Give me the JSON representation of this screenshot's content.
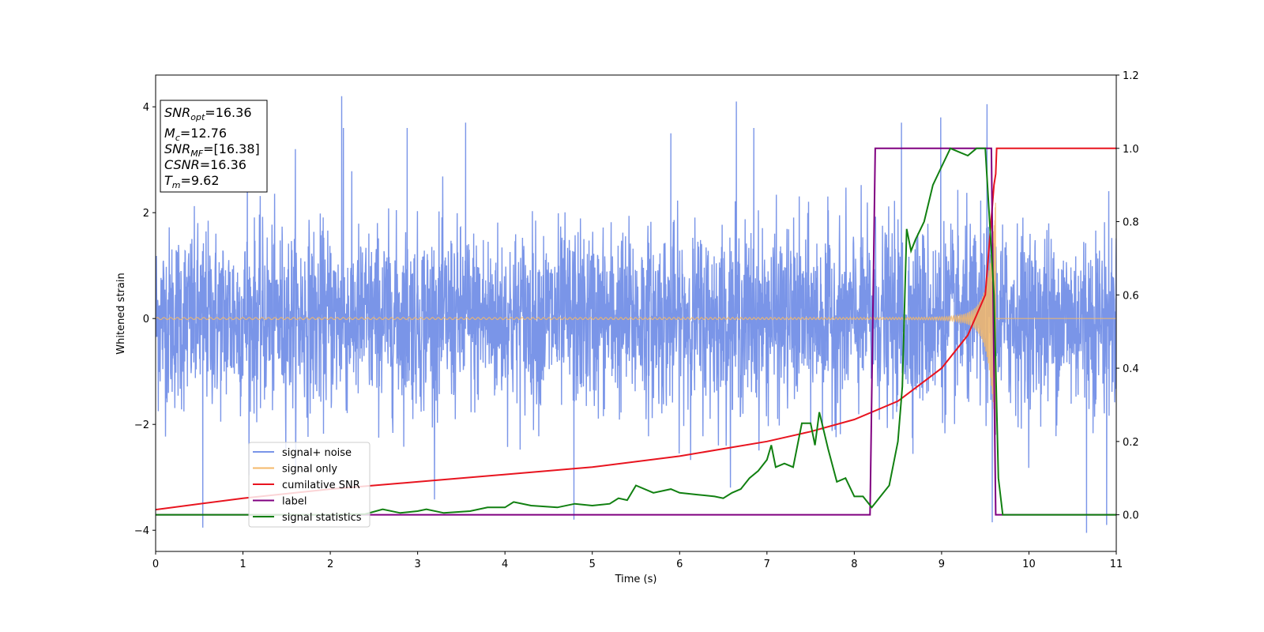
{
  "chart_data": {
    "type": "line",
    "xlabel": "Time (s)",
    "ylabel": "Whitened strain",
    "xlim": [
      0,
      11
    ],
    "ylim_left": [
      -4.4,
      4.6
    ],
    "ylim_right": [
      -0.1,
      1.2
    ],
    "x_ticks": [
      "0",
      "1",
      "2",
      "3",
      "4",
      "5",
      "6",
      "7",
      "8",
      "9",
      "10",
      "11"
    ],
    "y_ticks_left": [
      "−4",
      "−2",
      "0",
      "2",
      "4"
    ],
    "y_ticks_right": [
      "0.0",
      "0.2",
      "0.4",
      "0.6",
      "0.8",
      "1.0",
      "1.2"
    ],
    "grid": false,
    "legend_position": "lower-left",
    "annotation": {
      "snr_opt": {
        "sym": "SNR",
        "sub": "opt",
        "value": "=16.36"
      },
      "mc": {
        "sym": "M",
        "sub": "c",
        "value": "=12.76"
      },
      "snr_mf": {
        "sym": "SNR",
        "sub": "MF",
        "value": "=[16.38]"
      },
      "csnr": {
        "sym": "CSNR",
        "value": "=16.36"
      },
      "tm": {
        "sym": "T",
        "sub": "m",
        "value": "=9.62"
      }
    },
    "series": [
      {
        "name": "signal+ noise",
        "axis": "left",
        "color": "#7a95e8",
        "kind": "noise",
        "sigma": 0.85,
        "peak_values": [
          [
            0.54,
            -3.95
          ],
          [
            1.05,
            3.4
          ],
          [
            1.6,
            3.2
          ],
          [
            2.13,
            4.2
          ],
          [
            2.15,
            3.6
          ],
          [
            2.88,
            3.6
          ],
          [
            3.55,
            3.7
          ],
          [
            4.79,
            -3.8
          ],
          [
            5.9,
            3.5
          ],
          [
            6.65,
            4.1
          ],
          [
            6.85,
            3.6
          ],
          [
            8.54,
            3.7
          ],
          [
            8.99,
            3.8
          ],
          [
            9.52,
            4.05
          ],
          [
            9.58,
            -3.85
          ],
          [
            10.66,
            -4.05
          ],
          [
            10.89,
            -3.9
          ]
        ]
      },
      {
        "name": "signal only",
        "axis": "left",
        "color": "#f5b869",
        "kind": "chirp",
        "start_amplitude": 0.02,
        "merger_time": 9.62,
        "end_amplitude": 2.3
      },
      {
        "name": "cumilative SNR",
        "axis": "right",
        "color": "#e8141f",
        "x": [
          0.0,
          1.0,
          2.0,
          3.0,
          4.0,
          5.0,
          6.0,
          7.0,
          7.5,
          8.0,
          8.5,
          9.0,
          9.3,
          9.5,
          9.6,
          9.62,
          9.63,
          11.0
        ],
        "values": [
          0.014,
          0.045,
          0.07,
          0.09,
          0.11,
          0.13,
          0.16,
          0.2,
          0.227,
          0.26,
          0.31,
          0.4,
          0.49,
          0.6,
          0.9,
          0.93,
          1.0,
          1.0
        ]
      },
      {
        "name": "label",
        "axis": "right",
        "color": "#800080",
        "x": [
          0.0,
          8.18,
          8.24,
          9.57,
          9.62,
          11.0
        ],
        "values": [
          0.0,
          0.0,
          1.0,
          1.0,
          0.0,
          0.0
        ]
      },
      {
        "name": "signal statistics",
        "axis": "right",
        "color": "#118011",
        "x": [
          0.0,
          0.3,
          0.6,
          1.0,
          1.5,
          2.0,
          2.4,
          2.6,
          2.8,
          3.0,
          3.1,
          3.3,
          3.6,
          3.8,
          4.0,
          4.1,
          4.3,
          4.6,
          4.8,
          5.0,
          5.2,
          5.3,
          5.4,
          5.5,
          5.7,
          5.9,
          6.0,
          6.2,
          6.4,
          6.5,
          6.6,
          6.7,
          6.8,
          6.9,
          7.0,
          7.05,
          7.1,
          7.2,
          7.3,
          7.4,
          7.5,
          7.55,
          7.6,
          7.7,
          7.8,
          7.9,
          8.0,
          8.1,
          8.2,
          8.3,
          8.4,
          8.5,
          8.55,
          8.6,
          8.65,
          8.7,
          8.8,
          8.9,
          9.0,
          9.1,
          9.2,
          9.3,
          9.4,
          9.5,
          9.6,
          9.65,
          9.7,
          11.0
        ],
        "values": [
          0.0,
          0.0,
          0.0,
          0.0,
          0.0,
          0.0,
          0.002,
          0.015,
          0.005,
          0.01,
          0.015,
          0.005,
          0.01,
          0.02,
          0.02,
          0.035,
          0.025,
          0.02,
          0.03,
          0.025,
          0.03,
          0.045,
          0.04,
          0.08,
          0.06,
          0.07,
          0.06,
          0.055,
          0.05,
          0.045,
          0.06,
          0.07,
          0.1,
          0.12,
          0.15,
          0.19,
          0.13,
          0.14,
          0.13,
          0.25,
          0.25,
          0.19,
          0.28,
          0.18,
          0.09,
          0.1,
          0.05,
          0.05,
          0.02,
          0.05,
          0.08,
          0.2,
          0.35,
          0.78,
          0.72,
          0.75,
          0.8,
          0.9,
          0.95,
          1.0,
          0.99,
          0.98,
          1.0,
          1.0,
          0.6,
          0.1,
          0.0,
          0.0
        ]
      }
    ]
  }
}
